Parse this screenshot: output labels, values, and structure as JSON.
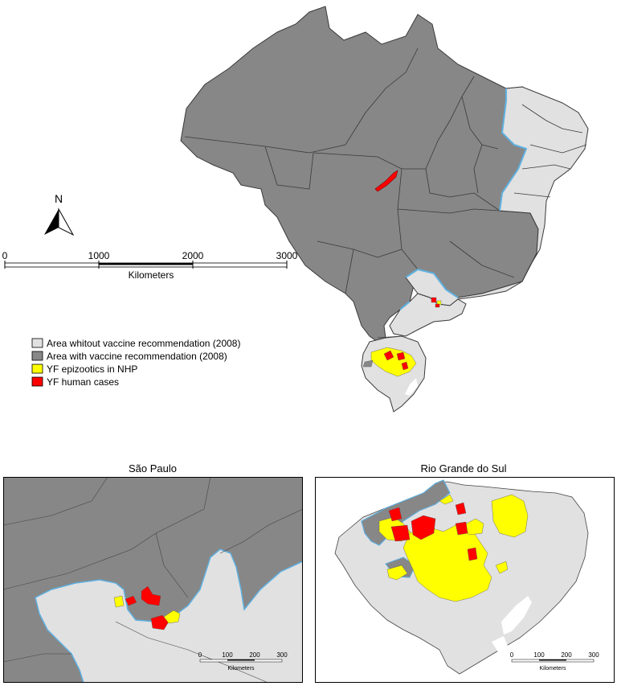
{
  "north_arrow": {
    "letter": "N"
  },
  "main_scale": {
    "ticks": [
      "0",
      "1000",
      "2000",
      "3000"
    ],
    "unit": "Kilometers"
  },
  "legend": {
    "items": [
      {
        "label": "Area whitout vaccine recommendation (2008)",
        "color": "#e1e1e1"
      },
      {
        "label": "Area with vaccine recommendation (2008)",
        "color": "#878787"
      },
      {
        "label": "YF epizootics in NHP",
        "color": "#ffff00"
      },
      {
        "label": "YF human cases",
        "color": "#ff0000"
      }
    ]
  },
  "insets": {
    "sao_paulo": {
      "title": "São Paulo",
      "scale_ticks": [
        "0",
        "100",
        "200",
        "300"
      ],
      "scale_unit": "Kilometers"
    },
    "rio_grande_do_sul": {
      "title": "Rio Grande do Sul",
      "scale_ticks": [
        "0",
        "100",
        "200",
        "300"
      ],
      "scale_unit": "Kilometers"
    }
  },
  "colors": {
    "vaccine_area": "#878787",
    "no_vaccine_area": "#e1e1e1",
    "epizootics": "#ffff00",
    "human_cases": "#ff0000",
    "boundary_line": "#5fb0e0"
  }
}
